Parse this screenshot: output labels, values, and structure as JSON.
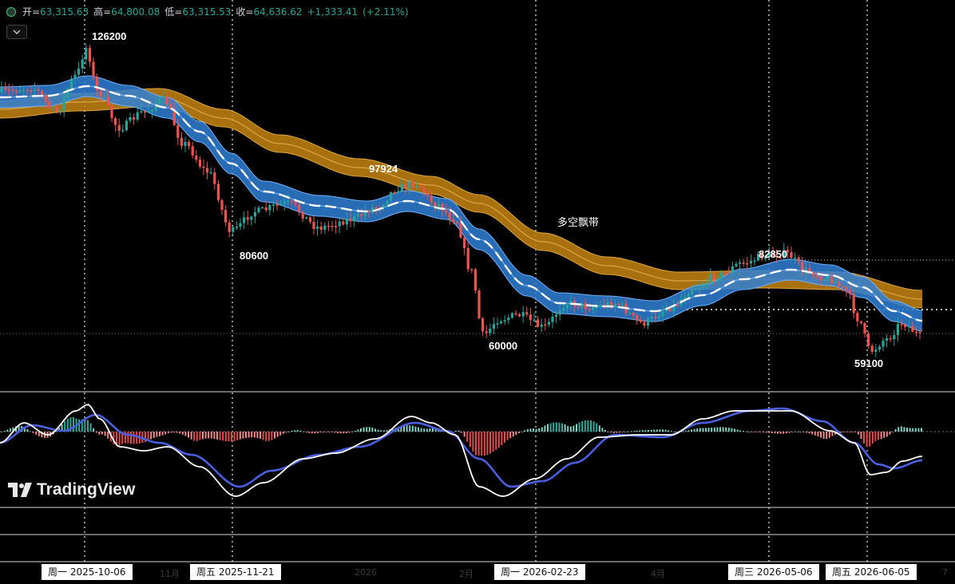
{
  "legend": {
    "open_label": "开=",
    "open": "63,315.63",
    "high_label": "高=",
    "high": "64,800.08",
    "low_label": "低=",
    "low": "63,315.53",
    "close_label": "收=",
    "close": "64,636.62",
    "change": "+1,333.41",
    "change_pct": "(+2.11%)"
  },
  "colors": {
    "up": "#26a69a",
    "down": "#ef5350",
    "blue_band": "#2f7fd6",
    "orange_band": "#c6850f",
    "background": "#000000"
  },
  "icons": {
    "collapse": "chevron-down-icon",
    "logo": "tradingview-logo-icon"
  },
  "logo_text": "TradingView",
  "time_axis": {
    "highlighted_dates": [
      "周一 2025-10-06",
      "周五 2025-11-21",
      "周一 2026-02-23",
      "周三 2026-05-06",
      "周五 2026-06-05"
    ],
    "ticks": [
      "11月",
      "2026",
      "2月",
      "4月",
      "7"
    ]
  },
  "chart_data": [
    {
      "type": "line",
      "panel": "price",
      "title": "",
      "annotations": [
        {
          "text": "126200",
          "value": 126200
        },
        {
          "text": "80600",
          "value": 80600
        },
        {
          "text": "97924",
          "value": 97924
        },
        {
          "text": "60000",
          "value": 60000
        },
        {
          "text": "82850",
          "value": 82850
        },
        {
          "text": "59100",
          "value": 59100
        },
        {
          "text": "多空飘带"
        }
      ],
      "last_ohlc": {
        "open": 63315.63,
        "high": 64800.08,
        "low": 63315.53,
        "close": 64636.62,
        "change": 1333.41,
        "change_pct": 2.11
      },
      "grid": false
    },
    {
      "type": "line",
      "panel": "oscillator",
      "series": [
        "macd",
        "signal",
        "histogram"
      ],
      "grid": false
    }
  ]
}
